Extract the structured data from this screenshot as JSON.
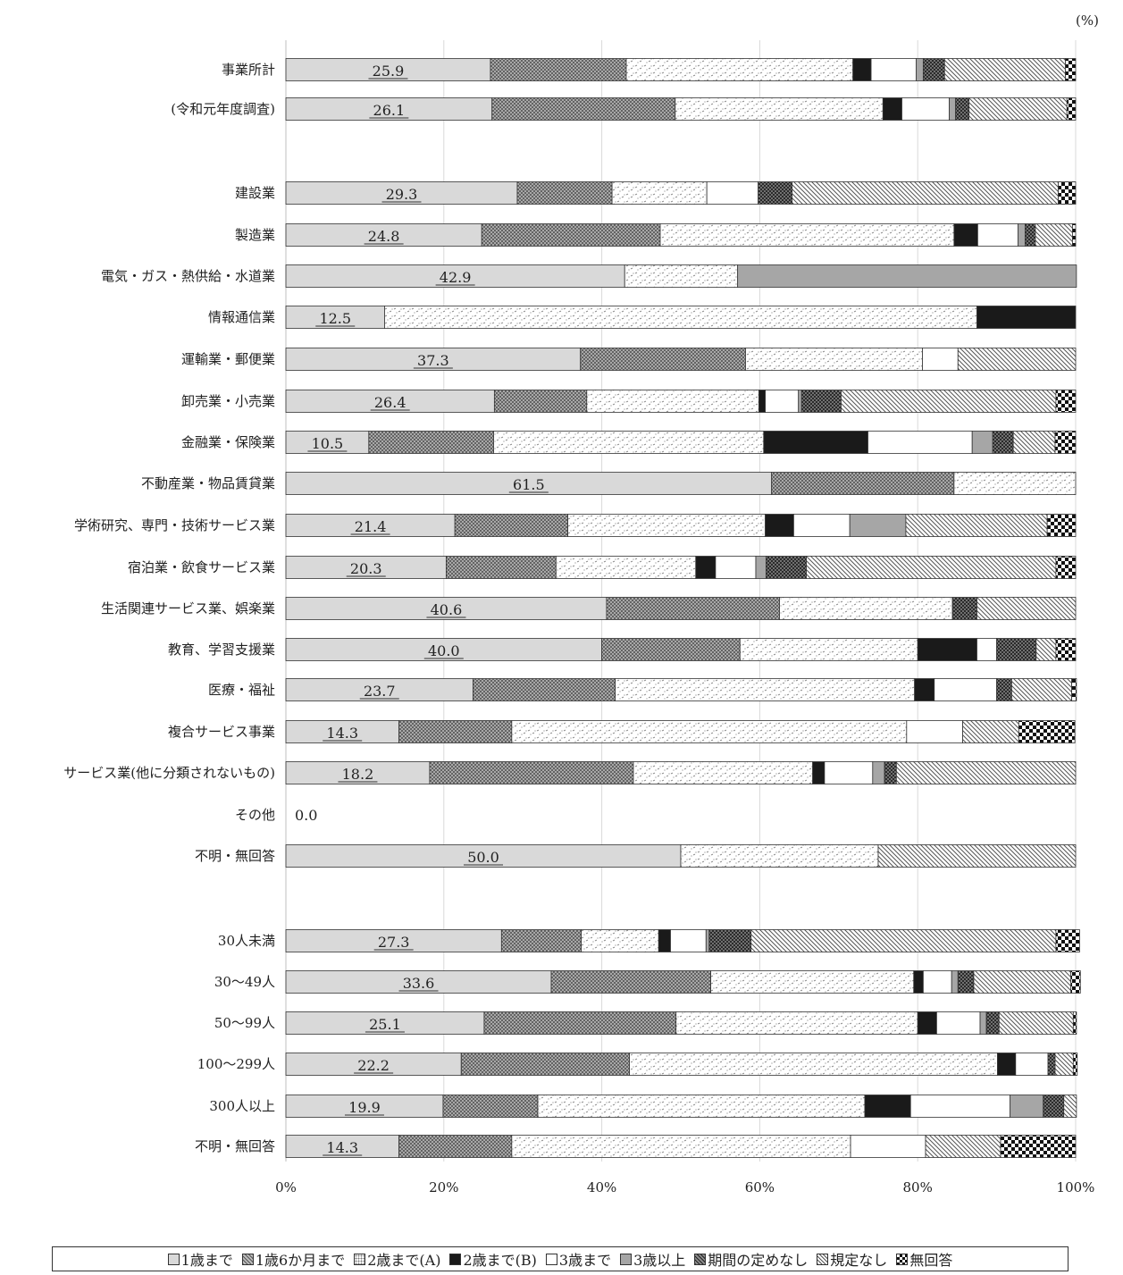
{
  "unit_label": "(%)",
  "legend_items": [
    {
      "name": "1歳まで",
      "color": "#d9d9d9",
      "pattern": "solid"
    },
    {
      "name": "1歳6か月まで",
      "color": "#8c8c8c",
      "pattern": "cross"
    },
    {
      "name": "2歳まで(A)",
      "color": "#ffffff",
      "pattern": "dots"
    },
    {
      "name": "2歳まで(B)",
      "color": "#1a1a1a",
      "pattern": "solid"
    },
    {
      "name": "3歳まで",
      "color": "#ffffff",
      "pattern": "solid"
    },
    {
      "name": "3歳以上",
      "color": "#a6a6a6",
      "pattern": "solid"
    },
    {
      "name": "期間の定めなし",
      "color": "#5a5a5a",
      "pattern": "crosshatch"
    },
    {
      "name": "規定なし",
      "color": "#ffffff",
      "pattern": "diag"
    },
    {
      "name": "無回答",
      "color": "#1a1a1a",
      "pattern": "checker"
    }
  ],
  "chart_data": {
    "type": "bar",
    "orientation": "horizontal",
    "stacked": true,
    "xlim": [
      0,
      100
    ],
    "x_ticks": [
      "0%",
      "20%",
      "40%",
      "60%",
      "80%",
      "100%"
    ],
    "grid": true,
    "legend_position": "bottom",
    "series": [
      {
        "name": "1歳まで"
      },
      {
        "name": "1歳6か月まで"
      },
      {
        "name": "2歳まで(A)"
      },
      {
        "name": "2歳まで(B)"
      },
      {
        "name": "3歳まで"
      },
      {
        "name": "3歳以上"
      },
      {
        "name": "期間の定めなし"
      },
      {
        "name": "規定なし"
      },
      {
        "name": "無回答"
      }
    ],
    "categories": [
      {
        "label": "事業所計",
        "values": [
          25.9,
          17.2,
          28.7,
          2.3,
          5.7,
          0.9,
          2.7,
          15.3,
          1.3
        ]
      },
      {
        "label": "(令和元年度調査)",
        "values": [
          26.1,
          23.2,
          26.3,
          2.4,
          6.0,
          0.8,
          1.7,
          12.4,
          1.1
        ]
      },
      {
        "label": "建設業",
        "values": [
          29.3,
          12.0,
          12.0,
          0,
          6.5,
          0,
          4.3,
          33.7,
          2.2
        ]
      },
      {
        "label": "製造業",
        "values": [
          24.8,
          22.6,
          37.2,
          3.0,
          5.1,
          0.9,
          1.3,
          4.7,
          0.4
        ]
      },
      {
        "label": "電気・ガス・熱供給・水道業",
        "values": [
          42.9,
          0,
          14.3,
          0,
          0,
          42.9,
          0,
          0,
          0
        ]
      },
      {
        "label": "情報通信業",
        "values": [
          12.5,
          0,
          75.0,
          12.5,
          0,
          0,
          0,
          0,
          0
        ]
      },
      {
        "label": "運輸業・郵便業",
        "values": [
          37.3,
          20.9,
          22.4,
          0,
          4.5,
          0,
          0,
          14.9,
          0
        ]
      },
      {
        "label": "卸売業・小売業",
        "values": [
          26.4,
          11.7,
          21.8,
          0.8,
          4.2,
          0.4,
          5.0,
          27.2,
          2.5
        ]
      },
      {
        "label": "金融業・保険業",
        "values": [
          10.5,
          15.8,
          34.2,
          13.2,
          13.2,
          2.6,
          2.6,
          5.3,
          2.6
        ]
      },
      {
        "label": "不動産業・物品賃貸業",
        "values": [
          61.5,
          23.1,
          15.4,
          0,
          0,
          0,
          0,
          0,
          0
        ]
      },
      {
        "label": "学術研究、専門・技術サービス業",
        "values": [
          21.4,
          14.3,
          25.0,
          3.6,
          7.1,
          7.1,
          0,
          17.9,
          3.6
        ]
      },
      {
        "label": "宿泊業・飲食サービス業",
        "values": [
          20.3,
          13.9,
          17.7,
          2.5,
          5.1,
          1.3,
          5.1,
          31.6,
          2.5
        ]
      },
      {
        "label": "生活関連サービス業、娯楽業",
        "values": [
          40.6,
          21.9,
          21.9,
          0,
          0,
          0,
          3.1,
          12.5,
          0
        ]
      },
      {
        "label": "教育、学習支援業",
        "values": [
          40.0,
          17.5,
          22.5,
          7.5,
          2.5,
          0,
          5.0,
          2.5,
          2.5
        ]
      },
      {
        "label": "医療・福祉",
        "values": [
          23.7,
          18.0,
          37.9,
          2.5,
          7.9,
          0,
          1.9,
          7.6,
          0.6
        ]
      },
      {
        "label": "複合サービス事業",
        "values": [
          14.3,
          14.3,
          50.0,
          0,
          7.1,
          0,
          0,
          7.1,
          7.1
        ]
      },
      {
        "label": "サービス業(他に分類されないもの)",
        "values": [
          18.2,
          25.8,
          22.7,
          1.5,
          6.1,
          1.5,
          1.5,
          22.7,
          0
        ]
      },
      {
        "label": "その他",
        "values": [
          0,
          0,
          0,
          0,
          0,
          0,
          0,
          0,
          0
        ],
        "zero_label": "0.0"
      },
      {
        "label": "不明・無回答",
        "values": [
          50.0,
          0,
          25.0,
          0,
          0,
          0,
          0,
          25.0,
          0
        ]
      },
      {
        "label": "30人未満",
        "values": [
          27.3,
          10.1,
          9.8,
          1.5,
          4.5,
          0.4,
          5.3,
          38.6,
          3.0
        ]
      },
      {
        "label": "30～49人",
        "values": [
          33.6,
          20.2,
          25.7,
          1.2,
          3.6,
          0.8,
          2.0,
          12.3,
          1.2
        ]
      },
      {
        "label": "50～99人",
        "values": [
          25.1,
          24.3,
          30.6,
          2.4,
          5.5,
          0.8,
          1.6,
          9.4,
          0.4
        ]
      },
      {
        "label": "100～299人",
        "values": [
          22.2,
          21.3,
          46.6,
          2.3,
          4.1,
          0,
          0.9,
          2.3,
          0.5
        ]
      },
      {
        "label": "300人以上",
        "values": [
          19.9,
          12.0,
          41.4,
          5.8,
          12.6,
          4.2,
          2.6,
          1.6,
          0
        ]
      },
      {
        "label": "不明・無回答",
        "values": [
          14.3,
          14.3,
          42.9,
          0,
          9.5,
          0,
          0,
          9.5,
          9.5
        ]
      }
    ]
  }
}
